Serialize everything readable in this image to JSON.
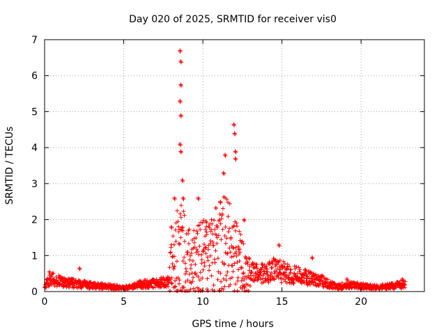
{
  "chart_data": {
    "type": "scatter",
    "title": "Day 020 of 2025, SRMTID for receiver vis0",
    "xlabel": "GPS time / hours",
    "ylabel": "SRMTID / TECUs",
    "xlim": [
      0,
      24
    ],
    "ylim": [
      0,
      7
    ],
    "xticks": [
      0,
      5,
      10,
      15,
      20
    ],
    "yticks": [
      0,
      1,
      2,
      3,
      4,
      5,
      6,
      7
    ],
    "grid": true,
    "marker": "+",
    "color": "#ff0000",
    "x_range_of_data": [
      0,
      22.8
    ],
    "series": [
      {
        "name": "vis0",
        "profile_x": [
          0.0,
          0.2,
          0.5,
          1.0,
          2.0,
          3.0,
          4.0,
          5.0,
          5.5,
          6.0,
          7.0,
          7.8,
          8.2,
          8.6,
          9.0,
          9.5,
          10.0,
          10.5,
          11.0,
          11.5,
          11.9,
          12.3,
          12.8,
          13.5,
          14.0,
          14.5,
          15.0,
          15.5,
          16.0,
          16.5,
          17.0,
          17.5,
          18.0,
          18.5,
          19.0,
          19.5,
          20.0,
          21.0,
          22.0,
          22.8
        ],
        "profile_y": [
          0.12,
          0.28,
          0.35,
          0.28,
          0.22,
          0.17,
          0.14,
          0.1,
          0.12,
          0.2,
          0.22,
          0.28,
          0.95,
          1.25,
          0.9,
          0.9,
          0.95,
          0.95,
          1.25,
          1.35,
          1.05,
          0.9,
          0.55,
          0.5,
          0.5,
          0.6,
          0.55,
          0.5,
          0.45,
          0.4,
          0.35,
          0.3,
          0.2,
          0.12,
          0.18,
          0.18,
          0.15,
          0.12,
          0.15,
          0.22
        ],
        "spikes": [
          {
            "x": 0.3,
            "y": 0.55
          },
          {
            "x": 2.2,
            "y": 0.65
          },
          {
            "x": 8.0,
            "y": 1.8
          },
          {
            "x": 8.2,
            "y": 2.6
          },
          {
            "x": 8.55,
            "y": 6.7
          },
          {
            "x": 8.6,
            "y": 6.4
          },
          {
            "x": 8.6,
            "y": 5.75
          },
          {
            "x": 8.55,
            "y": 5.3
          },
          {
            "x": 8.6,
            "y": 4.9
          },
          {
            "x": 8.55,
            "y": 4.1
          },
          {
            "x": 8.6,
            "y": 3.9
          },
          {
            "x": 8.7,
            "y": 3.1
          },
          {
            "x": 8.75,
            "y": 2.6
          },
          {
            "x": 9.7,
            "y": 2.6
          },
          {
            "x": 10.2,
            "y": 1.95
          },
          {
            "x": 11.3,
            "y": 3.3
          },
          {
            "x": 11.4,
            "y": 3.8
          },
          {
            "x": 11.1,
            "y": 2.5
          },
          {
            "x": 11.95,
            "y": 4.65
          },
          {
            "x": 12.0,
            "y": 4.4
          },
          {
            "x": 12.05,
            "y": 3.9
          },
          {
            "x": 12.05,
            "y": 3.7
          },
          {
            "x": 12.6,
            "y": 2.0
          },
          {
            "x": 14.8,
            "y": 1.3
          },
          {
            "x": 16.9,
            "y": 0.95
          },
          {
            "x": 19.1,
            "y": 0.35
          },
          {
            "x": 22.6,
            "y": 0.35
          }
        ]
      }
    ]
  }
}
